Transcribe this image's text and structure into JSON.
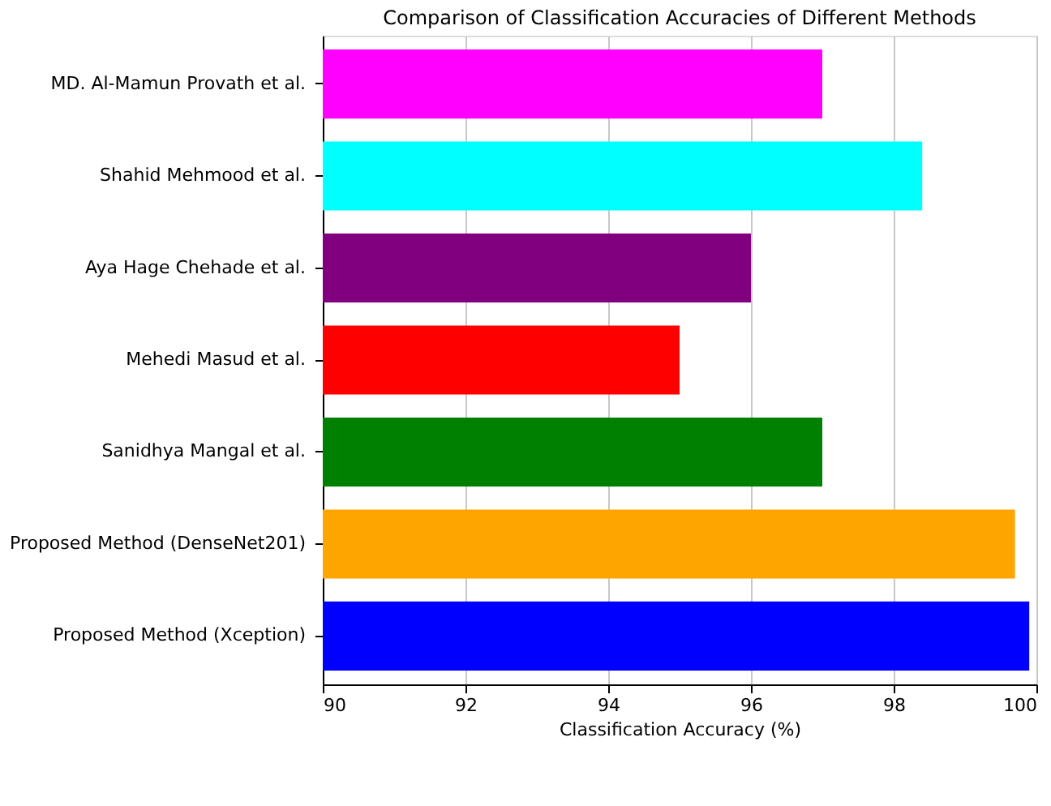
{
  "chart_data": {
    "type": "bar",
    "orientation": "horizontal",
    "title": "Comparison of Classification Accuracies of Different Methods",
    "xlabel": "Classification Accuracy (%)",
    "categories": [
      "MD. Al-Mamun Provath et al.",
      "Shahid Mehmood et al.",
      "Aya Hage Chehade et al.",
      "Mehedi Masud et al.",
      "Sanidhya Mangal et al.",
      "Proposed Method (DenseNet201)",
      "Proposed Method (Xception)"
    ],
    "values": [
      97.0,
      98.4,
      96.0,
      95.0,
      97.0,
      99.7,
      99.9
    ],
    "colors": [
      "#ff00ff",
      "#00ffff",
      "#800080",
      "#ff0000",
      "#008000",
      "#ffa500",
      "#0000ff"
    ],
    "xlim": [
      90,
      100
    ],
    "xticks": [
      90,
      92,
      94,
      96,
      98,
      100
    ],
    "grid": "x"
  }
}
